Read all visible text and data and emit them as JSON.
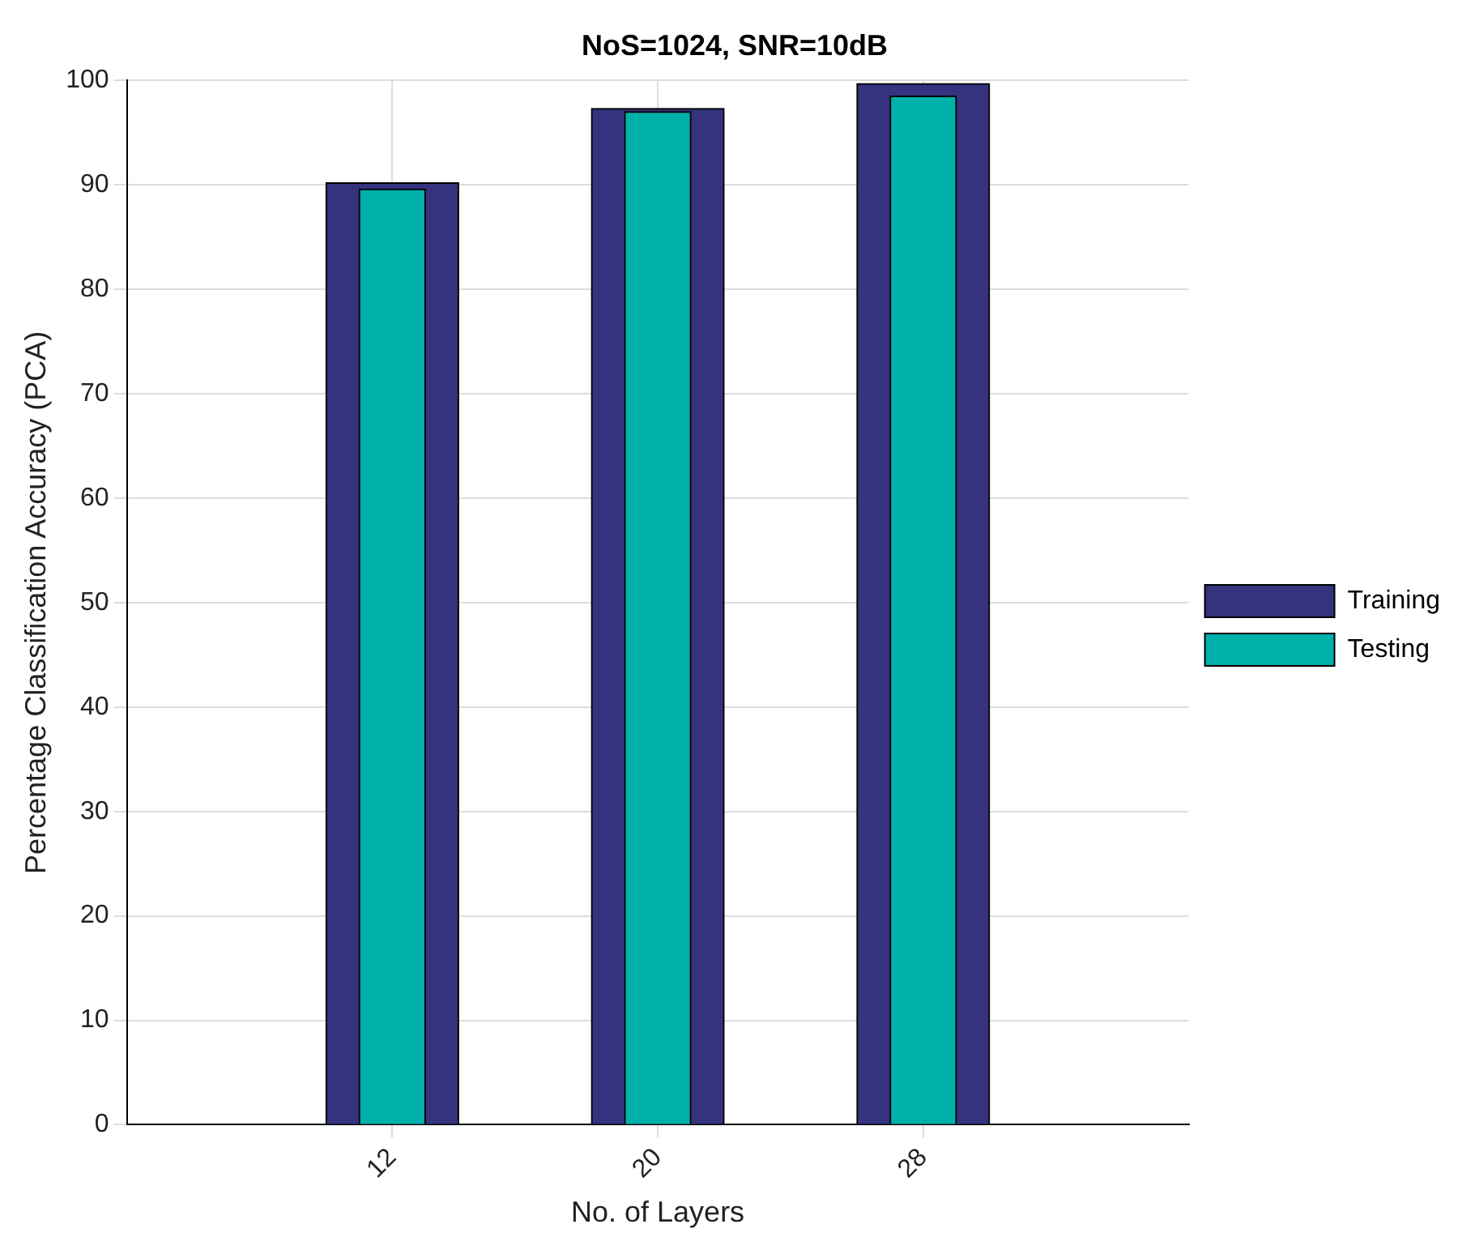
{
  "chart_data": {
    "type": "bar",
    "title": "NoS=1024, SNR=10dB",
    "xlabel": "No. of Layers",
    "ylabel": "Percentage Classification Accuracy (PCA)",
    "x": [
      12,
      20,
      28
    ],
    "xlim": [
      4,
      36
    ],
    "xticks": [
      12,
      20,
      28
    ],
    "ylim": [
      0,
      100
    ],
    "yticks": [
      0,
      10,
      20,
      30,
      40,
      50,
      60,
      70,
      80,
      90,
      100
    ],
    "series": [
      {
        "name": "Training",
        "color": "#35327e",
        "values": [
          90.2,
          97.3,
          99.7
        ]
      },
      {
        "name": "Testing",
        "color": "#00b0aa",
        "values": [
          89.6,
          97.0,
          98.5
        ]
      }
    ],
    "grid": true,
    "legend": "right"
  }
}
